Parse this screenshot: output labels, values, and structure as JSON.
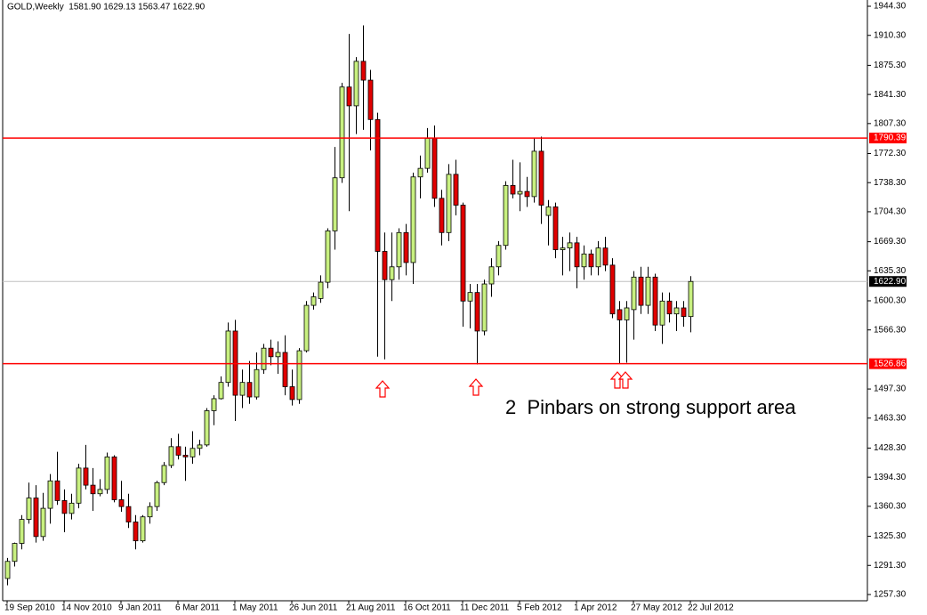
{
  "chart_data": {
    "type": "candlestick",
    "title": "GOLD,Weekly  1581.90 1629.13 1563.47 1622.90",
    "categories": [
      "19 Sep 2010",
      null,
      null,
      null,
      null,
      null,
      null,
      null,
      "14 Nov 2010",
      null,
      null,
      null,
      null,
      null,
      null,
      null,
      "9 Jan 2011",
      null,
      null,
      null,
      null,
      null,
      null,
      null,
      "6 Mar 2011",
      null,
      null,
      null,
      null,
      null,
      null,
      null,
      "1 May 2011",
      null,
      null,
      null,
      null,
      null,
      null,
      null,
      "26 Jun 2011",
      null,
      null,
      null,
      null,
      null,
      null,
      null,
      "21 Aug 2011",
      null,
      null,
      null,
      null,
      null,
      null,
      null,
      "16 Oct 2011",
      null,
      null,
      null,
      null,
      null,
      null,
      null,
      "11 Dec 2011",
      null,
      null,
      null,
      null,
      null,
      null,
      null,
      "5 Feb 2012",
      null,
      null,
      null,
      null,
      null,
      null,
      null,
      "1 Apr 2012",
      null,
      null,
      null,
      null,
      null,
      null,
      null,
      "27 May 2012",
      null,
      null,
      null,
      null,
      null,
      null,
      null,
      "22 Jul 2012"
    ],
    "open": [
      1276,
      1296,
      1317,
      1345,
      1370,
      1325,
      1358,
      1390,
      1367,
      1352,
      1364,
      1405,
      1385,
      1375,
      1380,
      1418,
      1368,
      1360,
      1342,
      1320,
      1348,
      1360,
      1388,
      1408,
      1430,
      1420,
      1418,
      1428,
      1432,
      1472,
      1486,
      1505,
      1565,
      1490,
      1505,
      1488,
      1520,
      1545,
      1535,
      1540,
      1500,
      1485,
      1542,
      1595,
      1603,
      1622,
      1682,
      1744,
      1850,
      1828,
      1880,
      1858,
      1812,
      1658,
      1625,
      1640,
      1680,
      1645,
      1745,
      1755,
      1790,
      1720,
      1680,
      1748,
      1712,
      1600,
      1610,
      1565,
      1620,
      1640,
      1665,
      1735,
      1725,
      1728,
      1722,
      1775,
      1700,
      1710,
      1660,
      1662,
      1668,
      1640,
      1655,
      1640,
      1662,
      1642,
      1590,
      1578,
      1590,
      1628,
      1595,
      1628,
      1572,
      1600,
      1585,
      1592,
      1581.9
    ],
    "high": [
      1300,
      1318,
      1350,
      1388,
      1385,
      1376,
      1398,
      1424,
      1380,
      1375,
      1410,
      1432,
      1405,
      1392,
      1423,
      1420,
      1390,
      1375,
      1350,
      1350,
      1365,
      1390,
      1412,
      1440,
      1445,
      1430,
      1448,
      1438,
      1475,
      1490,
      1512,
      1575,
      1578,
      1520,
      1530,
      1540,
      1550,
      1555,
      1553,
      1560,
      1520,
      1545,
      1600,
      1610,
      1630,
      1685,
      1780,
      1855,
      1912,
      1885,
      1922,
      1870,
      1820,
      1680,
      1680,
      1685,
      1690,
      1750,
      1770,
      1802,
      1805,
      1730,
      1760,
      1765,
      1715,
      1620,
      1620,
      1625,
      1650,
      1670,
      1740,
      1765,
      1762,
      1745,
      1790,
      1792,
      1718,
      1715,
      1675,
      1680,
      1675,
      1665,
      1660,
      1670,
      1675,
      1650,
      1600,
      1600,
      1635,
      1640,
      1640,
      1632,
      1610,
      1610,
      1600,
      1600,
      1629.13
    ],
    "low": [
      1268,
      1290,
      1310,
      1340,
      1318,
      1320,
      1340,
      1362,
      1330,
      1345,
      1358,
      1380,
      1355,
      1372,
      1375,
      1365,
      1354,
      1335,
      1310,
      1318,
      1340,
      1355,
      1385,
      1405,
      1415,
      1390,
      1410,
      1420,
      1430,
      1455,
      1485,
      1500,
      1460,
      1475,
      1480,
      1485,
      1515,
      1525,
      1515,
      1490,
      1478,
      1480,
      1540,
      1590,
      1598,
      1615,
      1660,
      1738,
      1705,
      1795,
      1800,
      1776,
      1535,
      1532,
      1600,
      1625,
      1630,
      1620,
      1720,
      1750,
      1710,
      1665,
      1670,
      1700,
      1570,
      1568,
      1526,
      1560,
      1605,
      1630,
      1660,
      1720,
      1705,
      1710,
      1715,
      1690,
      1665,
      1650,
      1630,
      1635,
      1615,
      1625,
      1630,
      1630,
      1635,
      1580,
      1527,
      1528,
      1555,
      1585,
      1585,
      1565,
      1550,
      1575,
      1565,
      1570,
      1563.47
    ],
    "close": [
      1296,
      1317,
      1345,
      1370,
      1325,
      1358,
      1390,
      1367,
      1352,
      1364,
      1405,
      1385,
      1375,
      1380,
      1418,
      1368,
      1360,
      1342,
      1320,
      1348,
      1360,
      1388,
      1408,
      1430,
      1420,
      1418,
      1428,
      1432,
      1472,
      1486,
      1505,
      1565,
      1490,
      1505,
      1488,
      1520,
      1545,
      1535,
      1540,
      1500,
      1485,
      1542,
      1595,
      1605,
      1622,
      1682,
      1744,
      1850,
      1828,
      1880,
      1858,
      1812,
      1658,
      1625,
      1640,
      1680,
      1645,
      1745,
      1755,
      1790,
      1720,
      1680,
      1748,
      1712,
      1600,
      1610,
      1565,
      1620,
      1640,
      1665,
      1735,
      1725,
      1728,
      1722,
      1775,
      1712,
      1710,
      1660,
      1662,
      1668,
      1640,
      1655,
      1640,
      1662,
      1642,
      1585,
      1578,
      1592,
      1628,
      1595,
      1628,
      1572,
      1600,
      1585,
      1592,
      1582,
      1622.9
    ],
    "up_color": "#c8f080",
    "down_color": "#e00000",
    "ylim": [
      1250,
      1951.6
    ],
    "yticks": [
      {
        "value": 1257.3,
        "label": "1257.30"
      },
      {
        "value": 1291.3,
        "label": "1291.30"
      },
      {
        "value": 1325.3,
        "label": "1325.30"
      },
      {
        "value": 1360.3,
        "label": "1360.30"
      },
      {
        "value": 1394.3,
        "label": "1394.30"
      },
      {
        "value": 1428.3,
        "label": "1428.30"
      },
      {
        "value": 1463.3,
        "label": "1463.30"
      },
      {
        "value": 1497.3,
        "label": "1497.30"
      },
      {
        "value": 1566.3,
        "label": "1566.30"
      },
      {
        "value": 1600.3,
        "label": "1600.30"
      },
      {
        "value": 1635.3,
        "label": "1635.30"
      },
      {
        "value": 1669.3,
        "label": "1669.30"
      },
      {
        "value": 1704.3,
        "label": "1704.30"
      },
      {
        "value": 1738.3,
        "label": "1738.30"
      },
      {
        "value": 1772.3,
        "label": "1772.30"
      },
      {
        "value": 1807.3,
        "label": "1807.30"
      },
      {
        "value": 1841.3,
        "label": "1841.30"
      },
      {
        "value": 1875.3,
        "label": "1875.30"
      },
      {
        "value": 1910.3,
        "label": "1910.30"
      },
      {
        "value": 1944.3,
        "label": "1944.30"
      }
    ],
    "levels": [
      1790.39,
      1526.86
    ],
    "level_color": "#ff0000",
    "last_price": {
      "value": 1622.9,
      "label": "1622.90"
    },
    "annotation": "2  Pinbars on strong support area"
  }
}
